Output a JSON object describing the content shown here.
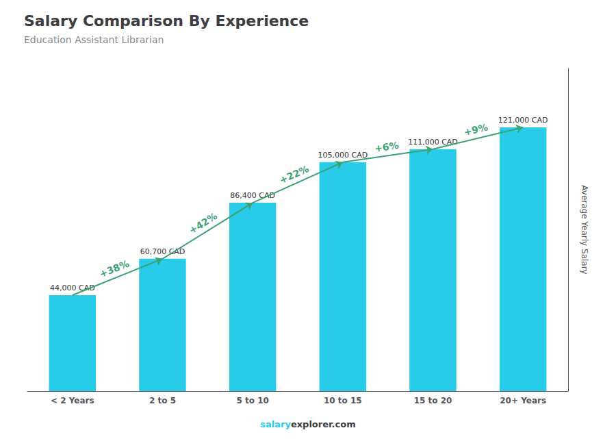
{
  "chart_data": {
    "type": "bar",
    "title": "Salary Comparison By Experience",
    "subtitle": "Education Assistant Librarian",
    "categories": [
      "< 2 Years",
      "2 to 5",
      "5 to 10",
      "10 to 15",
      "15 to 20",
      "20+ Years"
    ],
    "values": [
      44000,
      60700,
      86400,
      105000,
      111000,
      121000
    ],
    "value_labels": [
      "44,000 CAD",
      "60,700 CAD",
      "86,400 CAD",
      "105,000 CAD",
      "111,000 CAD",
      "121,000 CAD"
    ],
    "data_labels": true,
    "color": "#29cce8",
    "ylabel": "Average Yearly Salary",
    "ylim": [
      0,
      148000
    ],
    "tick_labels": "x",
    "grid": false,
    "annotations": [
      "+38%",
      "+42%",
      "+22%",
      "+6%",
      "+9%"
    ],
    "footer": [
      "salary",
      "explorer.com"
    ]
  }
}
